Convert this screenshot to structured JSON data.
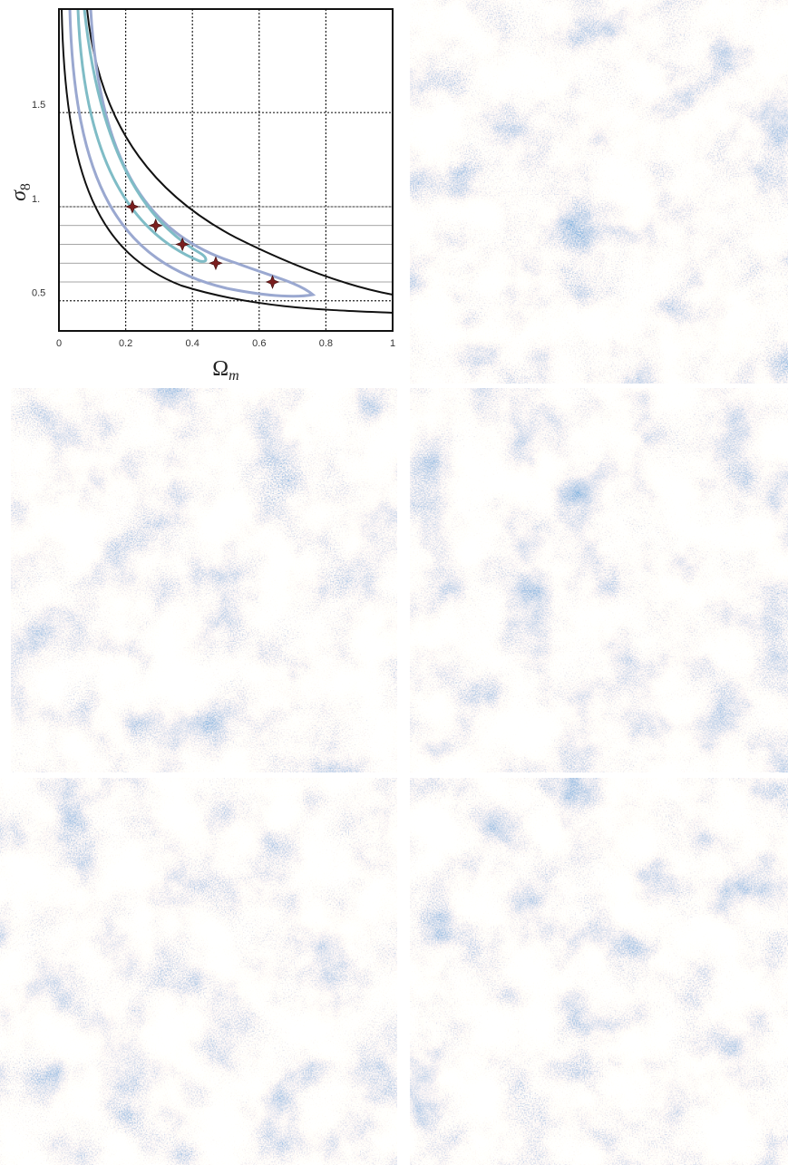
{
  "chart_data": {
    "type": "scatter",
    "xlabel_symbol": "Ω",
    "xlabel_subscript": "m",
    "ylabel_symbol": "σ",
    "ylabel_subscript": "8",
    "xlim": [
      0,
      1
    ],
    "xticks": [
      0,
      0.2,
      0.4,
      0.6,
      0.8,
      1
    ],
    "ylim": [
      0.34,
      2.05
    ],
    "yticks": [
      0.5,
      {
        "value": 1,
        "label": "1."
      },
      1.5
    ],
    "grid": true,
    "series": [
      {
        "color": "#7a1f1f",
        "x": [
          0.22,
          0.29,
          0.37,
          0.47,
          0.64
        ],
        "values": [
          1.0,
          0.9,
          0.8,
          0.7,
          0.6
        ]
      }
    ]
  }
}
